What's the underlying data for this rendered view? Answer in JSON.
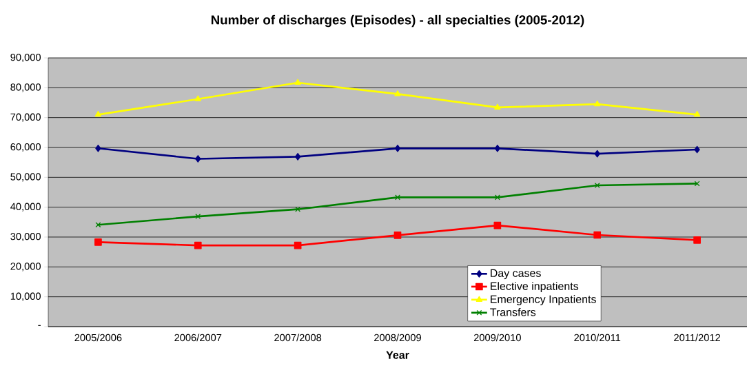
{
  "chart_data": {
    "type": "line",
    "title": "Number of discharges (Episodes) - all specialties (2005-2012)",
    "xlabel": "Year",
    "categories": [
      "2005/2006",
      "2006/2007",
      "2007/2008",
      "2008/2009",
      "2009/2010",
      "2010/2011",
      "2011/2012"
    ],
    "series": [
      {
        "name": "Day cases",
        "color": "#000080",
        "marker": "diamond",
        "values": [
          59700,
          56200,
          56900,
          59700,
          59700,
          57900,
          59300
        ]
      },
      {
        "name": "Elective inpatients",
        "color": "#ff0000",
        "marker": "square",
        "values": [
          28300,
          27200,
          27200,
          30600,
          33900,
          30700,
          29000
        ]
      },
      {
        "name": "Emergency Inpatients",
        "color": "#ffff00",
        "marker": "triangle",
        "values": [
          71000,
          76200,
          81700,
          77900,
          73400,
          74500,
          71000
        ]
      },
      {
        "name": "Transfers",
        "color": "#008000",
        "marker": "cross",
        "values": [
          34100,
          36900,
          39300,
          43300,
          43300,
          47300,
          47900
        ]
      }
    ],
    "ylim": [
      0,
      90000
    ],
    "yticks": [
      {
        "value": 0,
        "label": "-"
      },
      {
        "value": 10000,
        "label": "10,000"
      },
      {
        "value": 20000,
        "label": "20,000"
      },
      {
        "value": 30000,
        "label": "30,000"
      },
      {
        "value": 40000,
        "label": "40,000"
      },
      {
        "value": 50000,
        "label": "50,000"
      },
      {
        "value": 60000,
        "label": "60,000"
      },
      {
        "value": 70000,
        "label": "70,000"
      },
      {
        "value": 80000,
        "label": "80,000"
      },
      {
        "value": 90000,
        "label": "90,000"
      }
    ],
    "grid": "y",
    "legend": "bottom right",
    "line_style": "solid"
  }
}
